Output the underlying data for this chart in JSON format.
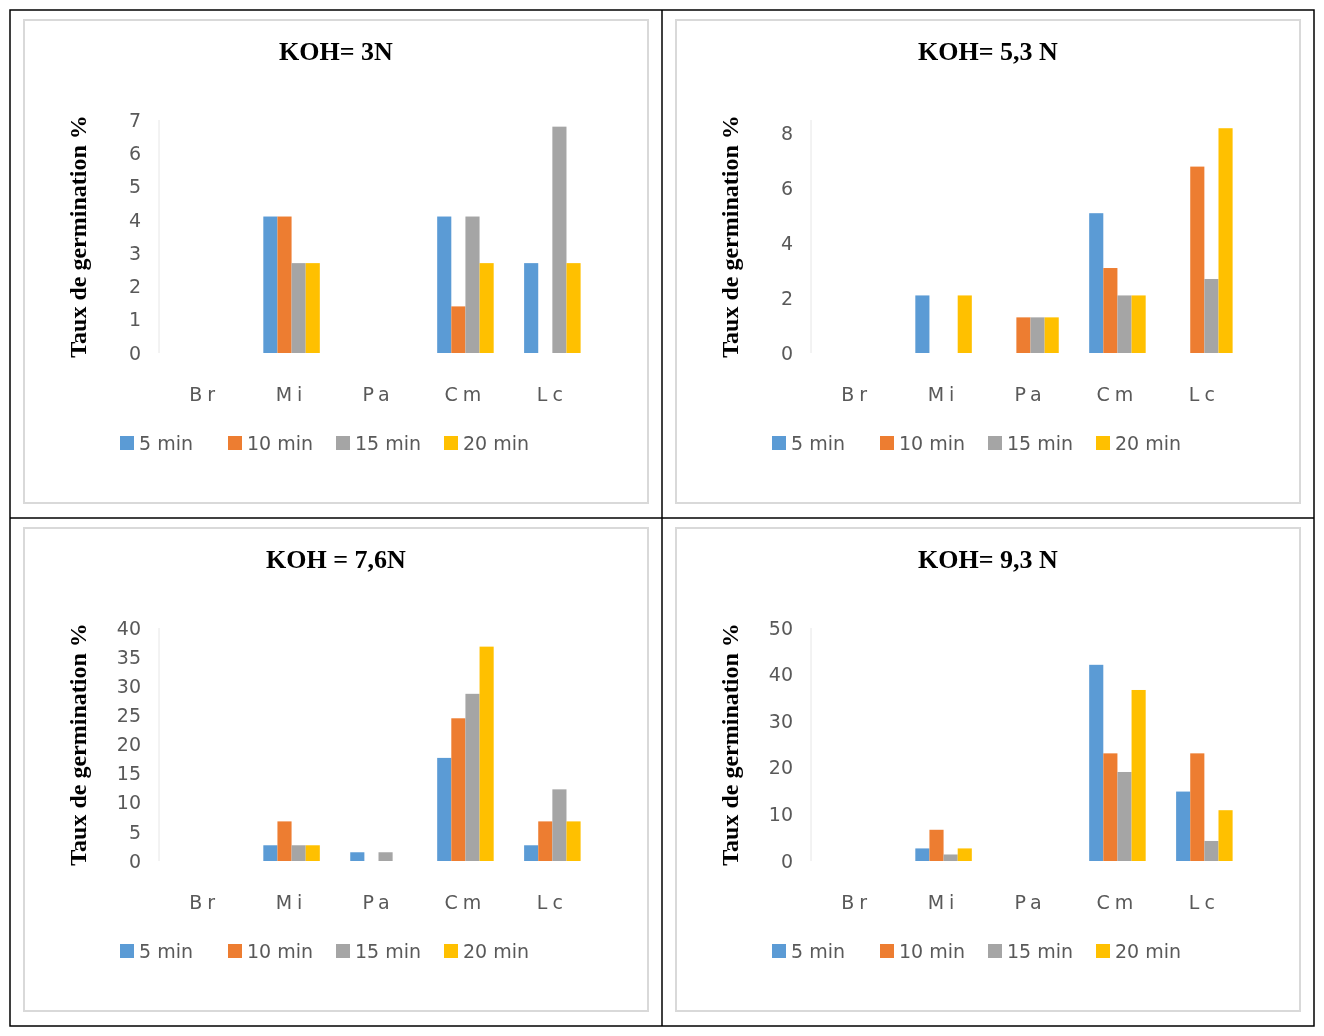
{
  "chart_data": [
    {
      "type": "bar",
      "title": "KOH= 3N",
      "ylabel": "Taux de germination %",
      "categories": [
        "Br",
        "Mi",
        "Pa",
        "Cm",
        "Lc"
      ],
      "series": [
        {
          "name": "5 min",
          "color": "#5b9bd5",
          "values": [
            0,
            4.1,
            0,
            4.1,
            2.7
          ]
        },
        {
          "name": "10 min",
          "color": "#ed7d31",
          "values": [
            0,
            4.1,
            0,
            1.4,
            0
          ]
        },
        {
          "name": "15 min",
          "color": "#a5a5a5",
          "values": [
            0,
            2.7,
            0,
            4.1,
            6.8
          ]
        },
        {
          "name": "20 min",
          "color": "#ffc000",
          "values": [
            0,
            2.7,
            0,
            2.7,
            2.7
          ]
        }
      ],
      "ylim": [
        0,
        7
      ],
      "yticks": [
        0,
        1,
        2,
        3,
        4,
        5,
        6,
        7
      ],
      "grid": false,
      "legend": "bottom"
    },
    {
      "type": "bar",
      "title": "KOH= 5,3 N",
      "ylabel": "Taux de germination %",
      "categories": [
        "Br",
        "Mi",
        "Pa",
        "Cm",
        "Lc"
      ],
      "series": [
        {
          "name": "5 min",
          "color": "#5b9bd5",
          "values": [
            0,
            2.1,
            0,
            5.1,
            0
          ]
        },
        {
          "name": "10 min",
          "color": "#ed7d31",
          "values": [
            0,
            0,
            1.3,
            3.1,
            6.8
          ]
        },
        {
          "name": "15 min",
          "color": "#a5a5a5",
          "values": [
            0,
            0,
            1.3,
            2.1,
            2.7
          ]
        },
        {
          "name": "20 min",
          "color": "#ffc000",
          "values": [
            0,
            2.1,
            1.3,
            2.1,
            8.2
          ]
        }
      ],
      "ylim": [
        0,
        8.5
      ],
      "yticks": [
        0,
        2,
        4,
        6,
        8
      ],
      "grid": false,
      "legend": "bottom"
    },
    {
      "type": "bar",
      "title": "KOH = 7,6N",
      "ylabel": "Taux de germination %",
      "categories": [
        "Br",
        "Mi",
        "Pa",
        "Cm",
        "Lc"
      ],
      "series": [
        {
          "name": "5 min",
          "color": "#5b9bd5",
          "values": [
            0,
            2.7,
            1.5,
            17.7,
            2.7
          ]
        },
        {
          "name": "10 min",
          "color": "#ed7d31",
          "values": [
            0,
            6.8,
            0,
            24.5,
            6.8
          ]
        },
        {
          "name": "15 min",
          "color": "#a5a5a5",
          "values": [
            0,
            2.7,
            1.5,
            28.7,
            12.3
          ]
        },
        {
          "name": "20 min",
          "color": "#ffc000",
          "values": [
            0,
            2.7,
            0,
            36.8,
            6.8
          ]
        }
      ],
      "ylim": [
        0,
        40
      ],
      "yticks": [
        0,
        5,
        10,
        15,
        20,
        25,
        30,
        35,
        40
      ],
      "grid": false,
      "legend": "bottom"
    },
    {
      "type": "bar",
      "title": "KOH= 9,3 N",
      "ylabel": "Taux de germination %",
      "categories": [
        "Br",
        "Mi",
        "Pa",
        "Cm",
        "Lc"
      ],
      "series": [
        {
          "name": "5 min",
          "color": "#5b9bd5",
          "values": [
            0,
            2.7,
            0,
            42.1,
            14.9
          ]
        },
        {
          "name": "10 min",
          "color": "#ed7d31",
          "values": [
            0,
            6.7,
            0,
            23.1,
            23.1
          ]
        },
        {
          "name": "15 min",
          "color": "#a5a5a5",
          "values": [
            0,
            1.4,
            0,
            19.1,
            4.3
          ]
        },
        {
          "name": "20 min",
          "color": "#ffc000",
          "values": [
            0,
            2.7,
            0,
            36.7,
            10.9
          ]
        }
      ],
      "ylim": [
        0,
        50
      ],
      "yticks": [
        0,
        10,
        20,
        30,
        40,
        50
      ],
      "grid": false,
      "legend": "bottom"
    }
  ]
}
